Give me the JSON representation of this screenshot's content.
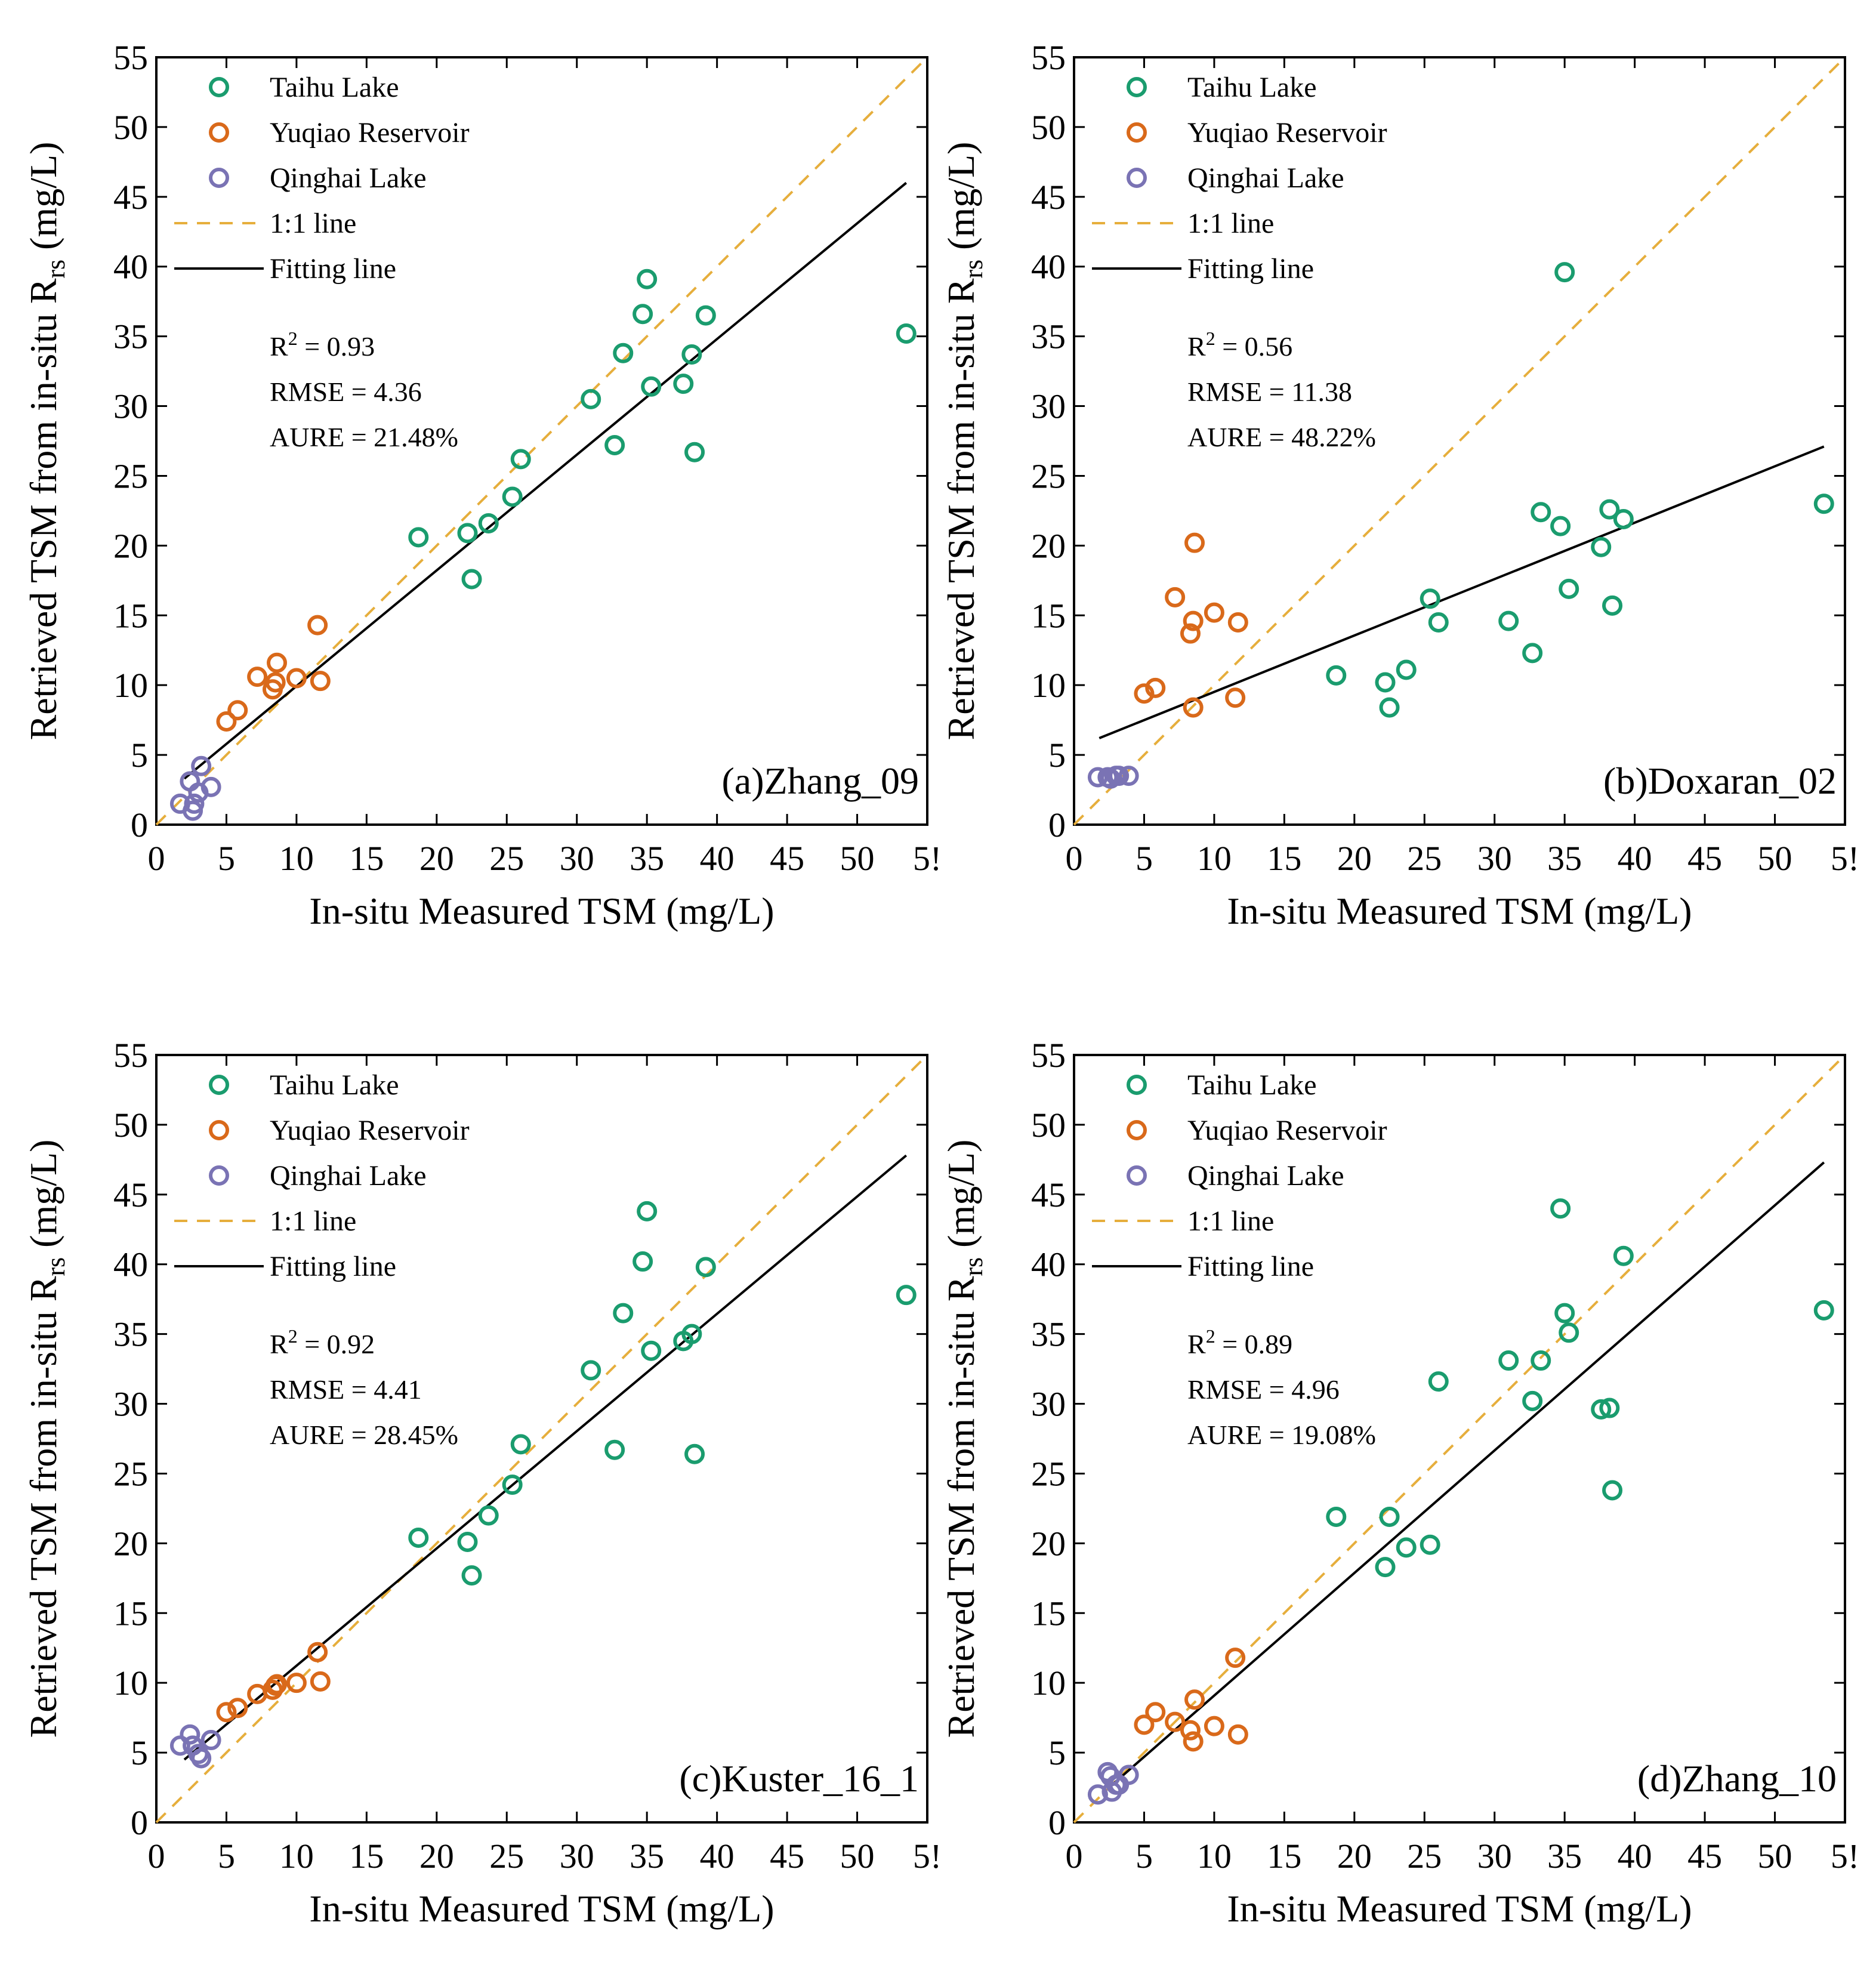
{
  "figure": {
    "colors": {
      "taihu": "#1a9c6e",
      "yuqiao": "#d9691a",
      "qinghai": "#7a73b4",
      "one_to_one": "#e6ae3c",
      "fit": "#000000"
    },
    "legend": {
      "taihu": "Taihu  Lake",
      "yuqiao": "Yuqiao Reservoir",
      "qinghai": "Qinghai Lake",
      "one_to_one": "1:1 line",
      "fit": "Fitting line"
    },
    "xlabel": "In-situ Measured TSM (mg/L)",
    "ylabel_main": "Retrieved TSM from in-situ R",
    "ylabel_sub": "rs",
    "ylabel_end": " (mg/L)",
    "x_ticks": [
      "0",
      "5",
      "10",
      "15",
      "20",
      "25",
      "30",
      "35",
      "40",
      "45",
      "50",
      "5!"
    ],
    "y_ticks": [
      "0",
      "5",
      "10",
      "15",
      "20",
      "25",
      "30",
      "35",
      "40",
      "45",
      "50",
      "55"
    ]
  },
  "chart_data": [
    {
      "type": "scatter",
      "panel_label": "(a)Zhang_09",
      "xlim": [
        0,
        55
      ],
      "ylim": [
        0,
        55
      ],
      "stats": {
        "r2_label": "R",
        "r2_sup": "2",
        "r2_value": " = 0.93",
        "rmse": "RMSE = 4.36",
        "aure": "AURE = 21.48%"
      },
      "fit_line": [
        [
          2.0,
          3.3
        ],
        [
          53.5,
          46.0
        ]
      ],
      "series": [
        {
          "name": "Taihu  Lake",
          "points": [
            [
              18.7,
              20.6
            ],
            [
              22.2,
              20.9
            ],
            [
              22.5,
              17.6
            ],
            [
              23.7,
              21.6
            ],
            [
              25.4,
              23.5
            ],
            [
              26.0,
              26.2
            ],
            [
              31.0,
              30.5
            ],
            [
              32.7,
              27.2
            ],
            [
              33.3,
              33.8
            ],
            [
              34.7,
              36.6
            ],
            [
              35.0,
              39.1
            ],
            [
              35.3,
              31.4
            ],
            [
              37.6,
              31.6
            ],
            [
              38.2,
              33.7
            ],
            [
              38.4,
              26.7
            ],
            [
              39.2,
              36.5
            ],
            [
              53.5,
              35.2
            ]
          ]
        },
        {
          "name": "Yuqiao Reservoir",
          "points": [
            [
              5.0,
              7.4
            ],
            [
              5.8,
              8.2
            ],
            [
              7.2,
              10.6
            ],
            [
              8.3,
              9.7
            ],
            [
              8.5,
              10.2
            ],
            [
              8.6,
              11.6
            ],
            [
              10.0,
              10.5
            ],
            [
              11.5,
              14.3
            ],
            [
              11.7,
              10.3
            ]
          ]
        },
        {
          "name": "Qinghai Lake",
          "points": [
            [
              1.7,
              1.5
            ],
            [
              2.4,
              3.1
            ],
            [
              2.6,
              1.0
            ],
            [
              2.7,
              1.5
            ],
            [
              3.0,
              2.3
            ],
            [
              3.2,
              4.2
            ],
            [
              3.9,
              2.7
            ]
          ]
        }
      ]
    },
    {
      "type": "scatter",
      "panel_label": "(b)Doxaran_02",
      "xlim": [
        0,
        55
      ],
      "ylim": [
        0,
        55
      ],
      "stats": {
        "r2_label": "R",
        "r2_sup": "2",
        "r2_value": " = 0.56",
        "rmse": "RMSE = 11.38",
        "aure": "AURE = 48.22%"
      },
      "fit_line": [
        [
          1.8,
          6.2
        ],
        [
          53.5,
          27.1
        ]
      ],
      "series": [
        {
          "name": "Taihu  Lake",
          "points": [
            [
              18.7,
              10.7
            ],
            [
              22.2,
              10.2
            ],
            [
              22.5,
              8.4
            ],
            [
              23.7,
              11.1
            ],
            [
              25.4,
              16.2
            ],
            [
              26.0,
              14.5
            ],
            [
              31.0,
              14.6
            ],
            [
              32.7,
              12.3
            ],
            [
              33.3,
              22.4
            ],
            [
              34.7,
              21.4
            ],
            [
              35.0,
              39.6
            ],
            [
              35.3,
              16.9
            ],
            [
              37.6,
              19.9
            ],
            [
              38.2,
              22.6
            ],
            [
              38.4,
              15.7
            ],
            [
              39.2,
              21.9
            ],
            [
              53.5,
              23.0
            ]
          ]
        },
        {
          "name": "Yuqiao Reservoir",
          "points": [
            [
              5.0,
              9.4
            ],
            [
              5.8,
              9.8
            ],
            [
              7.2,
              16.3
            ],
            [
              8.3,
              13.7
            ],
            [
              8.5,
              8.4
            ],
            [
              8.5,
              14.6
            ],
            [
              8.6,
              20.2
            ],
            [
              10.0,
              15.2
            ],
            [
              11.5,
              9.1
            ],
            [
              11.7,
              14.5
            ]
          ]
        },
        {
          "name": "Qinghai Lake",
          "points": [
            [
              1.7,
              3.4
            ],
            [
              2.4,
              3.4
            ],
            [
              2.6,
              3.3
            ],
            [
              3.0,
              3.5
            ],
            [
              3.2,
              3.5
            ],
            [
              3.9,
              3.5
            ]
          ]
        }
      ]
    },
    {
      "type": "scatter",
      "panel_label": "(c)Kuster_16_1",
      "xlim": [
        0,
        55
      ],
      "ylim": [
        0,
        55
      ],
      "stats": {
        "r2_label": "R",
        "r2_sup": "2",
        "r2_value": " = 0.92",
        "rmse": "RMSE = 4.41",
        "aure": "AURE = 28.45%"
      },
      "fit_line": [
        [
          2.0,
          4.5
        ],
        [
          53.5,
          47.8
        ]
      ],
      "series": [
        {
          "name": "Taihu  Lake",
          "points": [
            [
              18.7,
              20.4
            ],
            [
              22.2,
              20.1
            ],
            [
              22.5,
              17.7
            ],
            [
              23.7,
              22.0
            ],
            [
              25.4,
              24.2
            ],
            [
              26.0,
              27.1
            ],
            [
              31.0,
              32.4
            ],
            [
              32.7,
              26.7
            ],
            [
              33.3,
              36.5
            ],
            [
              34.7,
              40.2
            ],
            [
              35.0,
              43.8
            ],
            [
              35.3,
              33.8
            ],
            [
              37.6,
              34.5
            ],
            [
              38.2,
              35.0
            ],
            [
              38.4,
              26.4
            ],
            [
              39.2,
              39.8
            ],
            [
              53.5,
              37.8
            ]
          ]
        },
        {
          "name": "Yuqiao Reservoir",
          "points": [
            [
              5.0,
              7.9
            ],
            [
              5.8,
              8.2
            ],
            [
              7.2,
              9.2
            ],
            [
              8.3,
              9.5
            ],
            [
              8.5,
              9.8
            ],
            [
              8.6,
              9.9
            ],
            [
              10.0,
              10.0
            ],
            [
              11.5,
              12.2
            ],
            [
              11.7,
              10.1
            ]
          ]
        },
        {
          "name": "Qinghai Lake",
          "points": [
            [
              1.7,
              5.5
            ],
            [
              2.4,
              6.3
            ],
            [
              2.6,
              5.5
            ],
            [
              3.0,
              4.9
            ],
            [
              3.2,
              4.6
            ],
            [
              3.9,
              5.9
            ]
          ]
        }
      ]
    },
    {
      "type": "scatter",
      "panel_label": "(d)Zhang_10",
      "xlim": [
        0,
        55
      ],
      "ylim": [
        0,
        55
      ],
      "stats": {
        "r2_label": "R",
        "r2_sup": "2",
        "r2_value": " = 0.89",
        "rmse": "RMSE = 4.96",
        "aure": "AURE = 19.08%"
      },
      "fit_line": [
        [
          2.5,
          2.5
        ],
        [
          53.5,
          47.3
        ]
      ],
      "series": [
        {
          "name": "Taihu  Lake",
          "points": [
            [
              18.7,
              21.9
            ],
            [
              22.2,
              18.3
            ],
            [
              22.5,
              21.9
            ],
            [
              23.7,
              19.7
            ],
            [
              25.4,
              19.9
            ],
            [
              26.0,
              31.6
            ],
            [
              31.0,
              33.1
            ],
            [
              32.7,
              30.2
            ],
            [
              33.3,
              33.1
            ],
            [
              34.7,
              44.0
            ],
            [
              35.0,
              36.5
            ],
            [
              35.3,
              35.1
            ],
            [
              37.6,
              29.6
            ],
            [
              38.2,
              29.7
            ],
            [
              38.4,
              23.8
            ],
            [
              39.2,
              40.6
            ],
            [
              53.5,
              36.7
            ]
          ]
        },
        {
          "name": "Yuqiao Reservoir",
          "points": [
            [
              5.0,
              7.0
            ],
            [
              5.8,
              7.9
            ],
            [
              7.2,
              7.2
            ],
            [
              8.3,
              6.6
            ],
            [
              8.5,
              5.8
            ],
            [
              8.6,
              8.8
            ],
            [
              10.0,
              6.9
            ],
            [
              11.5,
              11.8
            ],
            [
              11.7,
              6.3
            ]
          ]
        },
        {
          "name": "Qinghai Lake",
          "points": [
            [
              1.7,
              2.0
            ],
            [
              2.4,
              3.6
            ],
            [
              2.6,
              3.3
            ],
            [
              2.7,
              2.2
            ],
            [
              3.0,
              2.7
            ],
            [
              3.2,
              2.7
            ],
            [
              3.9,
              3.4
            ]
          ]
        }
      ]
    }
  ]
}
